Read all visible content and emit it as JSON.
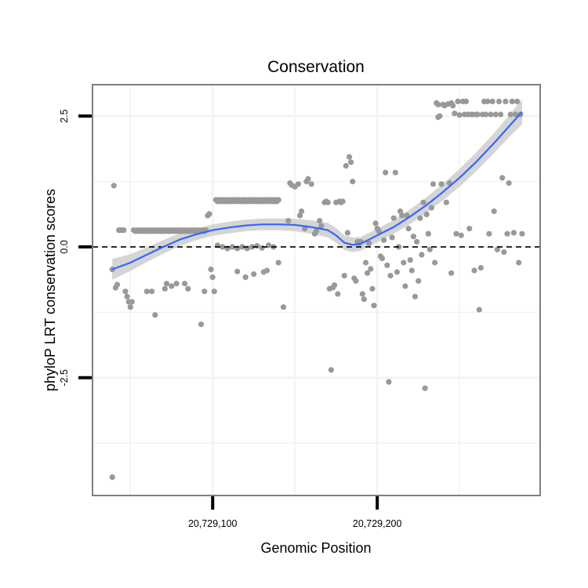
{
  "chart_data": {
    "type": "scatter",
    "title": "Conservation",
    "xlabel": "Genomic Position",
    "ylabel": "phyloP LRT conservation scores",
    "xlim": [
      20729027,
      20729299
    ],
    "ylim": [
      -4.75,
      3.1
    ],
    "x_ticks": [
      20729100,
      20729200
    ],
    "x_tick_labels": [
      "20,729,100",
      "20,729,200"
    ],
    "y_ticks": [
      -2.5,
      0,
      2.5
    ],
    "y_tick_labels": [
      "-2.5",
      "0.0",
      "2.5"
    ],
    "x_minor_grid": [
      20729050,
      20729150,
      20729250
    ],
    "y_minor_grid": [
      -3.75,
      -1.25,
      1.25
    ],
    "grid": true,
    "reference_line": {
      "y": 0,
      "style": "dashed"
    },
    "colors": {
      "points": "#999999",
      "smooth_line": "#3366ff",
      "confidence_band": "#d0d0d0",
      "frame": "#7f7f7f",
      "grid": "#f2f2f2"
    },
    "points": [
      [
        20729039,
        -4.4
      ],
      [
        20729039,
        -0.43
      ],
      [
        20729040,
        1.17
      ],
      [
        20729041,
        -0.78
      ],
      [
        20729042,
        -0.72
      ],
      [
        20729043,
        0.32
      ],
      [
        20729044,
        0.32
      ],
      [
        20729045,
        0.32
      ],
      [
        20729046,
        0.32
      ],
      [
        20729047,
        -0.85
      ],
      [
        20729048,
        -0.95
      ],
      [
        20729049,
        -1.05
      ],
      [
        20729050,
        -1.15
      ],
      [
        20729051,
        -1.05
      ],
      [
        20729052,
        0.32
      ],
      [
        20729053,
        0.3
      ],
      [
        20729054,
        0.32
      ],
      [
        20729055,
        0.3
      ],
      [
        20729056,
        0.32
      ],
      [
        20729057,
        0.3
      ],
      [
        20729058,
        0.32
      ],
      [
        20729059,
        0.3
      ],
      [
        20729060,
        0.32
      ],
      [
        20729061,
        0.3
      ],
      [
        20729062,
        0.32
      ],
      [
        20729063,
        0.3
      ],
      [
        20729064,
        0.32
      ],
      [
        20729065,
        0.3
      ],
      [
        20729066,
        0.32
      ],
      [
        20729067,
        0.3
      ],
      [
        20729068,
        0.32
      ],
      [
        20729069,
        0.3
      ],
      [
        20729070,
        0.32
      ],
      [
        20729071,
        0.3
      ],
      [
        20729072,
        0.32
      ],
      [
        20729073,
        0.3
      ],
      [
        20729074,
        0.32
      ],
      [
        20729075,
        0.3
      ],
      [
        20729076,
        0.32
      ],
      [
        20729077,
        0.3
      ],
      [
        20729078,
        0.32
      ],
      [
        20729079,
        0.3
      ],
      [
        20729080,
        0.32
      ],
      [
        20729081,
        0.3
      ],
      [
        20729082,
        0.32
      ],
      [
        20729083,
        0.3
      ],
      [
        20729084,
        0.32
      ],
      [
        20729085,
        0.3
      ],
      [
        20729086,
        0.32
      ],
      [
        20729087,
        0.3
      ],
      [
        20729088,
        0.32
      ],
      [
        20729089,
        0.3
      ],
      [
        20729090,
        0.32
      ],
      [
        20729091,
        0.3
      ],
      [
        20729092,
        0.32
      ],
      [
        20729093,
        0.3
      ],
      [
        20729094,
        0.32
      ],
      [
        20729095,
        0.3
      ],
      [
        20729096,
        0.32
      ],
      [
        20729060,
        -0.85
      ],
      [
        20729063,
        -0.85
      ],
      [
        20729065,
        -1.3
      ],
      [
        20729071,
        -0.8
      ],
      [
        20729072,
        -0.7
      ],
      [
        20729075,
        -0.75
      ],
      [
        20729078,
        -0.7
      ],
      [
        20729083,
        -0.7
      ],
      [
        20729085,
        -0.8
      ],
      [
        20729093,
        -1.48
      ],
      [
        20729095,
        -0.85
      ],
      [
        20729097,
        0.6
      ],
      [
        20729098,
        0.63
      ],
      [
        20729099,
        -0.43
      ],
      [
        20729100,
        -0.58
      ],
      [
        20729101,
        -0.85
      ],
      [
        20729102,
        0.9
      ],
      [
        20729103,
        0.87
      ],
      [
        20729104,
        0.9
      ],
      [
        20729105,
        0.87
      ],
      [
        20729106,
        0.9
      ],
      [
        20729107,
        0.87
      ],
      [
        20729108,
        0.9
      ],
      [
        20729109,
        0.87
      ],
      [
        20729110,
        0.9
      ],
      [
        20729111,
        0.87
      ],
      [
        20729112,
        0.9
      ],
      [
        20729113,
        0.87
      ],
      [
        20729114,
        0.9
      ],
      [
        20729115,
        0.87
      ],
      [
        20729116,
        0.9
      ],
      [
        20729117,
        0.87
      ],
      [
        20729118,
        0.9
      ],
      [
        20729119,
        0.87
      ],
      [
        20729120,
        0.9
      ],
      [
        20729121,
        0.87
      ],
      [
        20729122,
        0.9
      ],
      [
        20729123,
        0.87
      ],
      [
        20729124,
        0.9
      ],
      [
        20729125,
        0.87
      ],
      [
        20729126,
        0.9
      ],
      [
        20729127,
        0.87
      ],
      [
        20729128,
        0.9
      ],
      [
        20729129,
        0.87
      ],
      [
        20729130,
        0.9
      ],
      [
        20729131,
        0.87
      ],
      [
        20729132,
        0.9
      ],
      [
        20729133,
        0.87
      ],
      [
        20729134,
        0.9
      ],
      [
        20729135,
        0.87
      ],
      [
        20729136,
        0.9
      ],
      [
        20729137,
        0.87
      ],
      [
        20729138,
        0.9
      ],
      [
        20729139,
        0.87
      ],
      [
        20729140,
        0.9
      ],
      [
        20729103,
        0.03
      ],
      [
        20729106,
        0.0
      ],
      [
        20729109,
        -0.03
      ],
      [
        20729112,
        0.0
      ],
      [
        20729115,
        -0.03
      ],
      [
        20729118,
        0.0
      ],
      [
        20729121,
        -0.03
      ],
      [
        20729124,
        0.0
      ],
      [
        20729127,
        0.02
      ],
      [
        20729130,
        -0.02
      ],
      [
        20729134,
        0.03
      ],
      [
        20729137,
        0.0
      ],
      [
        20729115,
        -0.47
      ],
      [
        20729120,
        -0.58
      ],
      [
        20729125,
        -0.52
      ],
      [
        20729131,
        -0.48
      ],
      [
        20729133,
        -0.45
      ],
      [
        20729140,
        -0.3
      ],
      [
        20729143,
        -1.15
      ],
      [
        20729146,
        0.5
      ],
      [
        20729147,
        1.22
      ],
      [
        20729148,
        1.18
      ],
      [
        20729150,
        1.15
      ],
      [
        20729152,
        1.2
      ],
      [
        20729153,
        0.6
      ],
      [
        20729154,
        0.68
      ],
      [
        20729156,
        0.35
      ],
      [
        20729157,
        1.25
      ],
      [
        20729158,
        1.3
      ],
      [
        20729160,
        1.2
      ],
      [
        20729162,
        0.25
      ],
      [
        20729163,
        0.3
      ],
      [
        20729165,
        0.5
      ],
      [
        20729166,
        0.4
      ],
      [
        20729168,
        0.85
      ],
      [
        20729169,
        0.87
      ],
      [
        20729170,
        0.85
      ],
      [
        20729171,
        -0.8
      ],
      [
        20729172,
        -2.35
      ],
      [
        20729173,
        -0.78
      ],
      [
        20729174,
        -0.73
      ],
      [
        20729175,
        0.85
      ],
      [
        20729176,
        -0.9
      ],
      [
        20729177,
        0.87
      ],
      [
        20729178,
        0.85
      ],
      [
        20729179,
        0.87
      ],
      [
        20729180,
        -0.55
      ],
      [
        20729181,
        1.55
      ],
      [
        20729182,
        0.27
      ],
      [
        20729183,
        1.72
      ],
      [
        20729184,
        1.62
      ],
      [
        20729185,
        1.25
      ],
      [
        20729186,
        -0.6
      ],
      [
        20729187,
        -0.65
      ],
      [
        20729188,
        0.1
      ],
      [
        20729189,
        0.07
      ],
      [
        20729190,
        0.1
      ],
      [
        20729191,
        -0.9
      ],
      [
        20729192,
        -1.0
      ],
      [
        20729193,
        -0.3
      ],
      [
        20729194,
        -0.5
      ],
      [
        20729195,
        0.07
      ],
      [
        20729196,
        -0.42
      ],
      [
        20729197,
        -0.8
      ],
      [
        20729198,
        -1.12
      ],
      [
        20729199,
        0.45
      ],
      [
        20729200,
        0.35
      ],
      [
        20729201,
        0.3
      ],
      [
        20729202,
        -0.18
      ],
      [
        20729203,
        -0.22
      ],
      [
        20729204,
        0.13
      ],
      [
        20729205,
        1.42
      ],
      [
        20729206,
        -0.35
      ],
      [
        20729207,
        -2.58
      ],
      [
        20729208,
        -0.55
      ],
      [
        20729209,
        0.18
      ],
      [
        20729210,
        0.55
      ],
      [
        20729211,
        1.42
      ],
      [
        20729212,
        -0.48
      ],
      [
        20729213,
        0.0
      ],
      [
        20729214,
        0.68
      ],
      [
        20729215,
        0.6
      ],
      [
        20729216,
        -0.3
      ],
      [
        20729217,
        -0.75
      ],
      [
        20729218,
        0.6
      ],
      [
        20729219,
        0.35
      ],
      [
        20729220,
        -0.25
      ],
      [
        20729221,
        -0.45
      ],
      [
        20729222,
        0.2
      ],
      [
        20729223,
        -0.95
      ],
      [
        20729224,
        0.1
      ],
      [
        20729225,
        -0.65
      ],
      [
        20729226,
        0.55
      ],
      [
        20729227,
        -0.15
      ],
      [
        20729228,
        0.85
      ],
      [
        20729229,
        -2.7
      ],
      [
        20729230,
        0.62
      ],
      [
        20729231,
        0.25
      ],
      [
        20729232,
        -0.05
      ],
      [
        20729233,
        0.75
      ],
      [
        20729234,
        1.2
      ],
      [
        20729235,
        -0.3
      ],
      [
        20729236,
        2.75
      ],
      [
        20729237,
        2.72
      ],
      [
        20729237,
        2.48
      ],
      [
        20729238,
        2.5
      ],
      [
        20729239,
        1.2
      ],
      [
        20729240,
        2.72
      ],
      [
        20729241,
        2.7
      ],
      [
        20729242,
        0.85
      ],
      [
        20729243,
        2.73
      ],
      [
        20729244,
        1.22
      ],
      [
        20729245,
        -0.5
      ],
      [
        20729245,
        2.75
      ],
      [
        20729246,
        2.7
      ],
      [
        20729247,
        2.55
      ],
      [
        20729248,
        0.25
      ],
      [
        20729249,
        2.78
      ],
      [
        20729250,
        2.52
      ],
      [
        20729251,
        0.22
      ],
      [
        20729252,
        2.78
      ],
      [
        20729253,
        2.53
      ],
      [
        20729254,
        2.78
      ],
      [
        20729255,
        2.53
      ],
      [
        20729256,
        0.35
      ],
      [
        20729257,
        2.53
      ],
      [
        20729258,
        2.53
      ],
      [
        20729259,
        -0.45
      ],
      [
        20729260,
        2.53
      ],
      [
        20729261,
        2.53
      ],
      [
        20729262,
        -1.2
      ],
      [
        20729263,
        -0.4
      ],
      [
        20729264,
        2.53
      ],
      [
        20729265,
        2.78
      ],
      [
        20729266,
        2.53
      ],
      [
        20729267,
        2.78
      ],
      [
        20729268,
        0.25
      ],
      [
        20729269,
        2.53
      ],
      [
        20729270,
        2.78
      ],
      [
        20729271,
        0.68
      ],
      [
        20729272,
        2.53
      ],
      [
        20729273,
        -0.05
      ],
      [
        20729274,
        2.78
      ],
      [
        20729275,
        2.53
      ],
      [
        20729276,
        1.32
      ],
      [
        20729277,
        -0.1
      ],
      [
        20729278,
        2.78
      ],
      [
        20729279,
        0.25
      ],
      [
        20729280,
        1.22
      ],
      [
        20729281,
        2.53
      ],
      [
        20729282,
        2.78
      ],
      [
        20729283,
        0.27
      ],
      [
        20729284,
        2.53
      ],
      [
        20729285,
        2.78
      ],
      [
        20729286,
        -0.3
      ],
      [
        20729287,
        2.53
      ],
      [
        20729288,
        0.25
      ]
    ],
    "smooth": {
      "x": [
        20729039,
        20729050,
        20729060,
        20729070,
        20729080,
        20729090,
        20729100,
        20729110,
        20729120,
        20729130,
        20729140,
        20729150,
        20729160,
        20729170,
        20729175,
        20729180,
        20729185,
        20729190,
        20729195,
        20729200,
        20729210,
        20729220,
        20729230,
        20729240,
        20729250,
        20729260,
        20729270,
        20729280,
        20729288
      ],
      "y": [
        -0.43,
        -0.3,
        -0.15,
        0.0,
        0.14,
        0.24,
        0.32,
        0.37,
        0.41,
        0.43,
        0.43,
        0.42,
        0.38,
        0.32,
        0.22,
        0.08,
        0.04,
        0.06,
        0.14,
        0.22,
        0.38,
        0.58,
        0.8,
        1.05,
        1.32,
        1.62,
        1.95,
        2.3,
        2.58
      ],
      "se": [
        0.2,
        0.16,
        0.14,
        0.13,
        0.12,
        0.11,
        0.11,
        0.11,
        0.11,
        0.11,
        0.11,
        0.12,
        0.13,
        0.14,
        0.14,
        0.14,
        0.14,
        0.13,
        0.13,
        0.13,
        0.13,
        0.14,
        0.15,
        0.16,
        0.17,
        0.18,
        0.19,
        0.21,
        0.24
      ]
    }
  }
}
